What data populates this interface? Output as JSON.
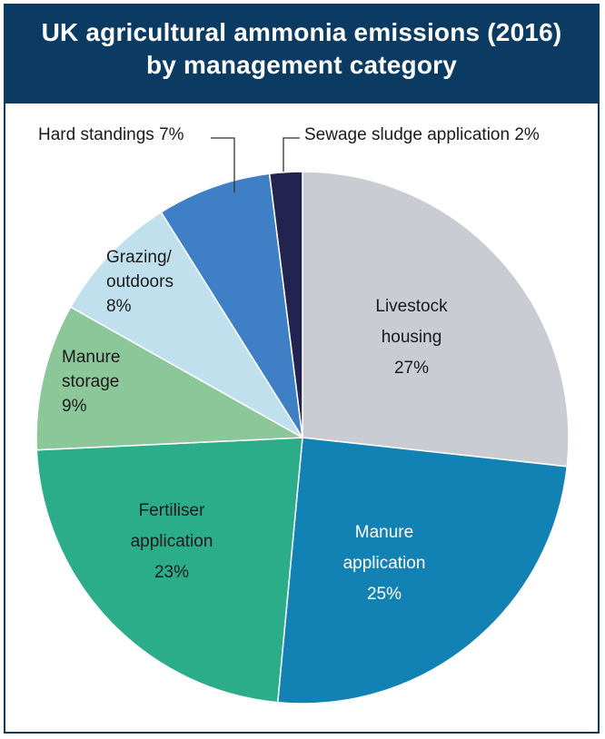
{
  "chart_data": {
    "type": "pie",
    "title_line1": "UK agricultural ammonia emissions (2016)",
    "title_line2": "by management category",
    "slices": [
      {
        "name": "Livestock housing",
        "label_lines": [
          "Livestock",
          "housing",
          "27%"
        ],
        "value": 27,
        "color": "#c9ccd3",
        "text_color": "#1a1a1a"
      },
      {
        "name": "Manure application",
        "label_lines": [
          "Manure",
          "application",
          "25%"
        ],
        "value": 25,
        "color": "#1282b4",
        "text_color": "#ffffff"
      },
      {
        "name": "Fertiliser application",
        "label_lines": [
          "Fertiliser",
          "application",
          "23%"
        ],
        "value": 23,
        "color": "#2bad8a",
        "text_color": "#1a1a1a"
      },
      {
        "name": "Manure storage",
        "label_lines": [
          "Manure",
          "storage",
          "9%"
        ],
        "value": 9,
        "color": "#8cc79a",
        "text_color": "#1a1a1a"
      },
      {
        "name": "Grazing/ outdoors",
        "label_lines": [
          "Grazing/",
          "outdoors",
          "8%"
        ],
        "value": 8,
        "color": "#bfe0ec",
        "text_color": "#1a1a1a"
      },
      {
        "name": "Hard standings",
        "label_lines": [
          "Hard standings 7%"
        ],
        "value": 7,
        "color": "#3f7fc5",
        "text_color": "#1a1a1a"
      },
      {
        "name": "Sewage sludge application",
        "label_lines": [
          "Sewage sludge application 2%"
        ],
        "value": 2,
        "color": "#22244f",
        "text_color": "#1a1a1a"
      }
    ]
  }
}
